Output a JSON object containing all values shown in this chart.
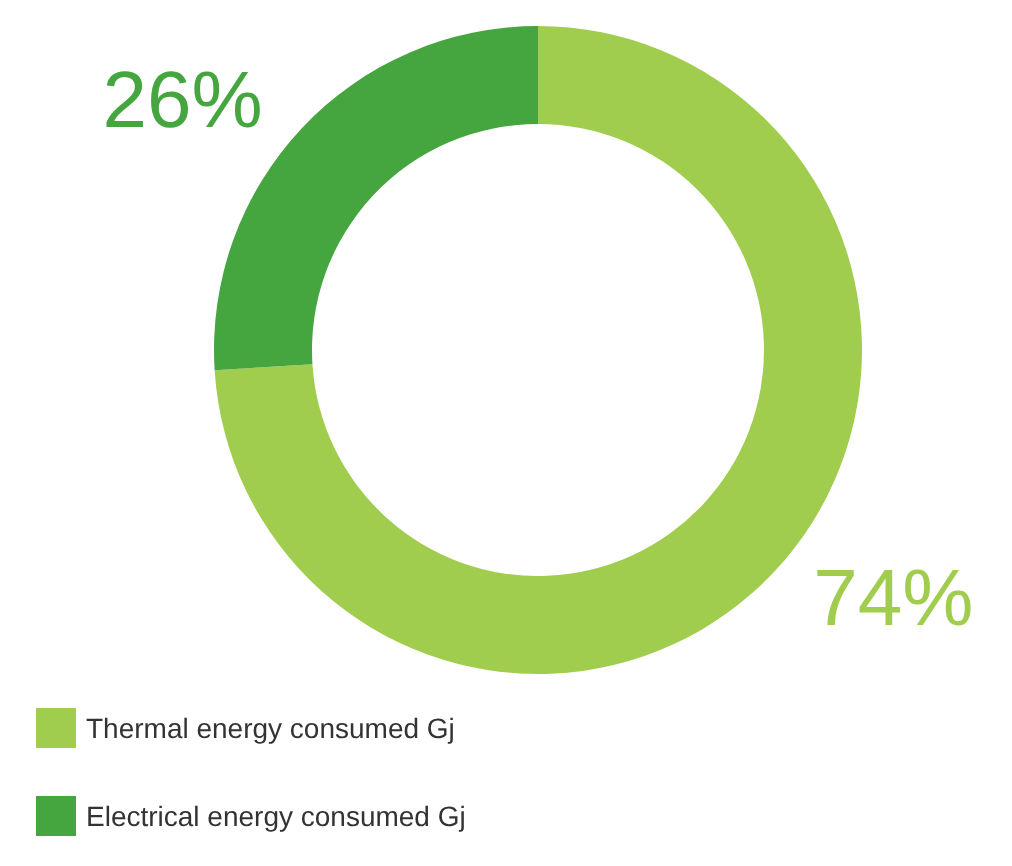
{
  "chart_data": {
    "type": "donut",
    "categories": [
      "Thermal energy consumed Gj",
      "Electrical energy consumed Gj"
    ],
    "values": [
      74,
      26
    ],
    "colors": [
      "#a0cd4e",
      "#45a640"
    ],
    "value_labels": [
      "74%",
      "26%"
    ],
    "legend": "bottom left"
  }
}
